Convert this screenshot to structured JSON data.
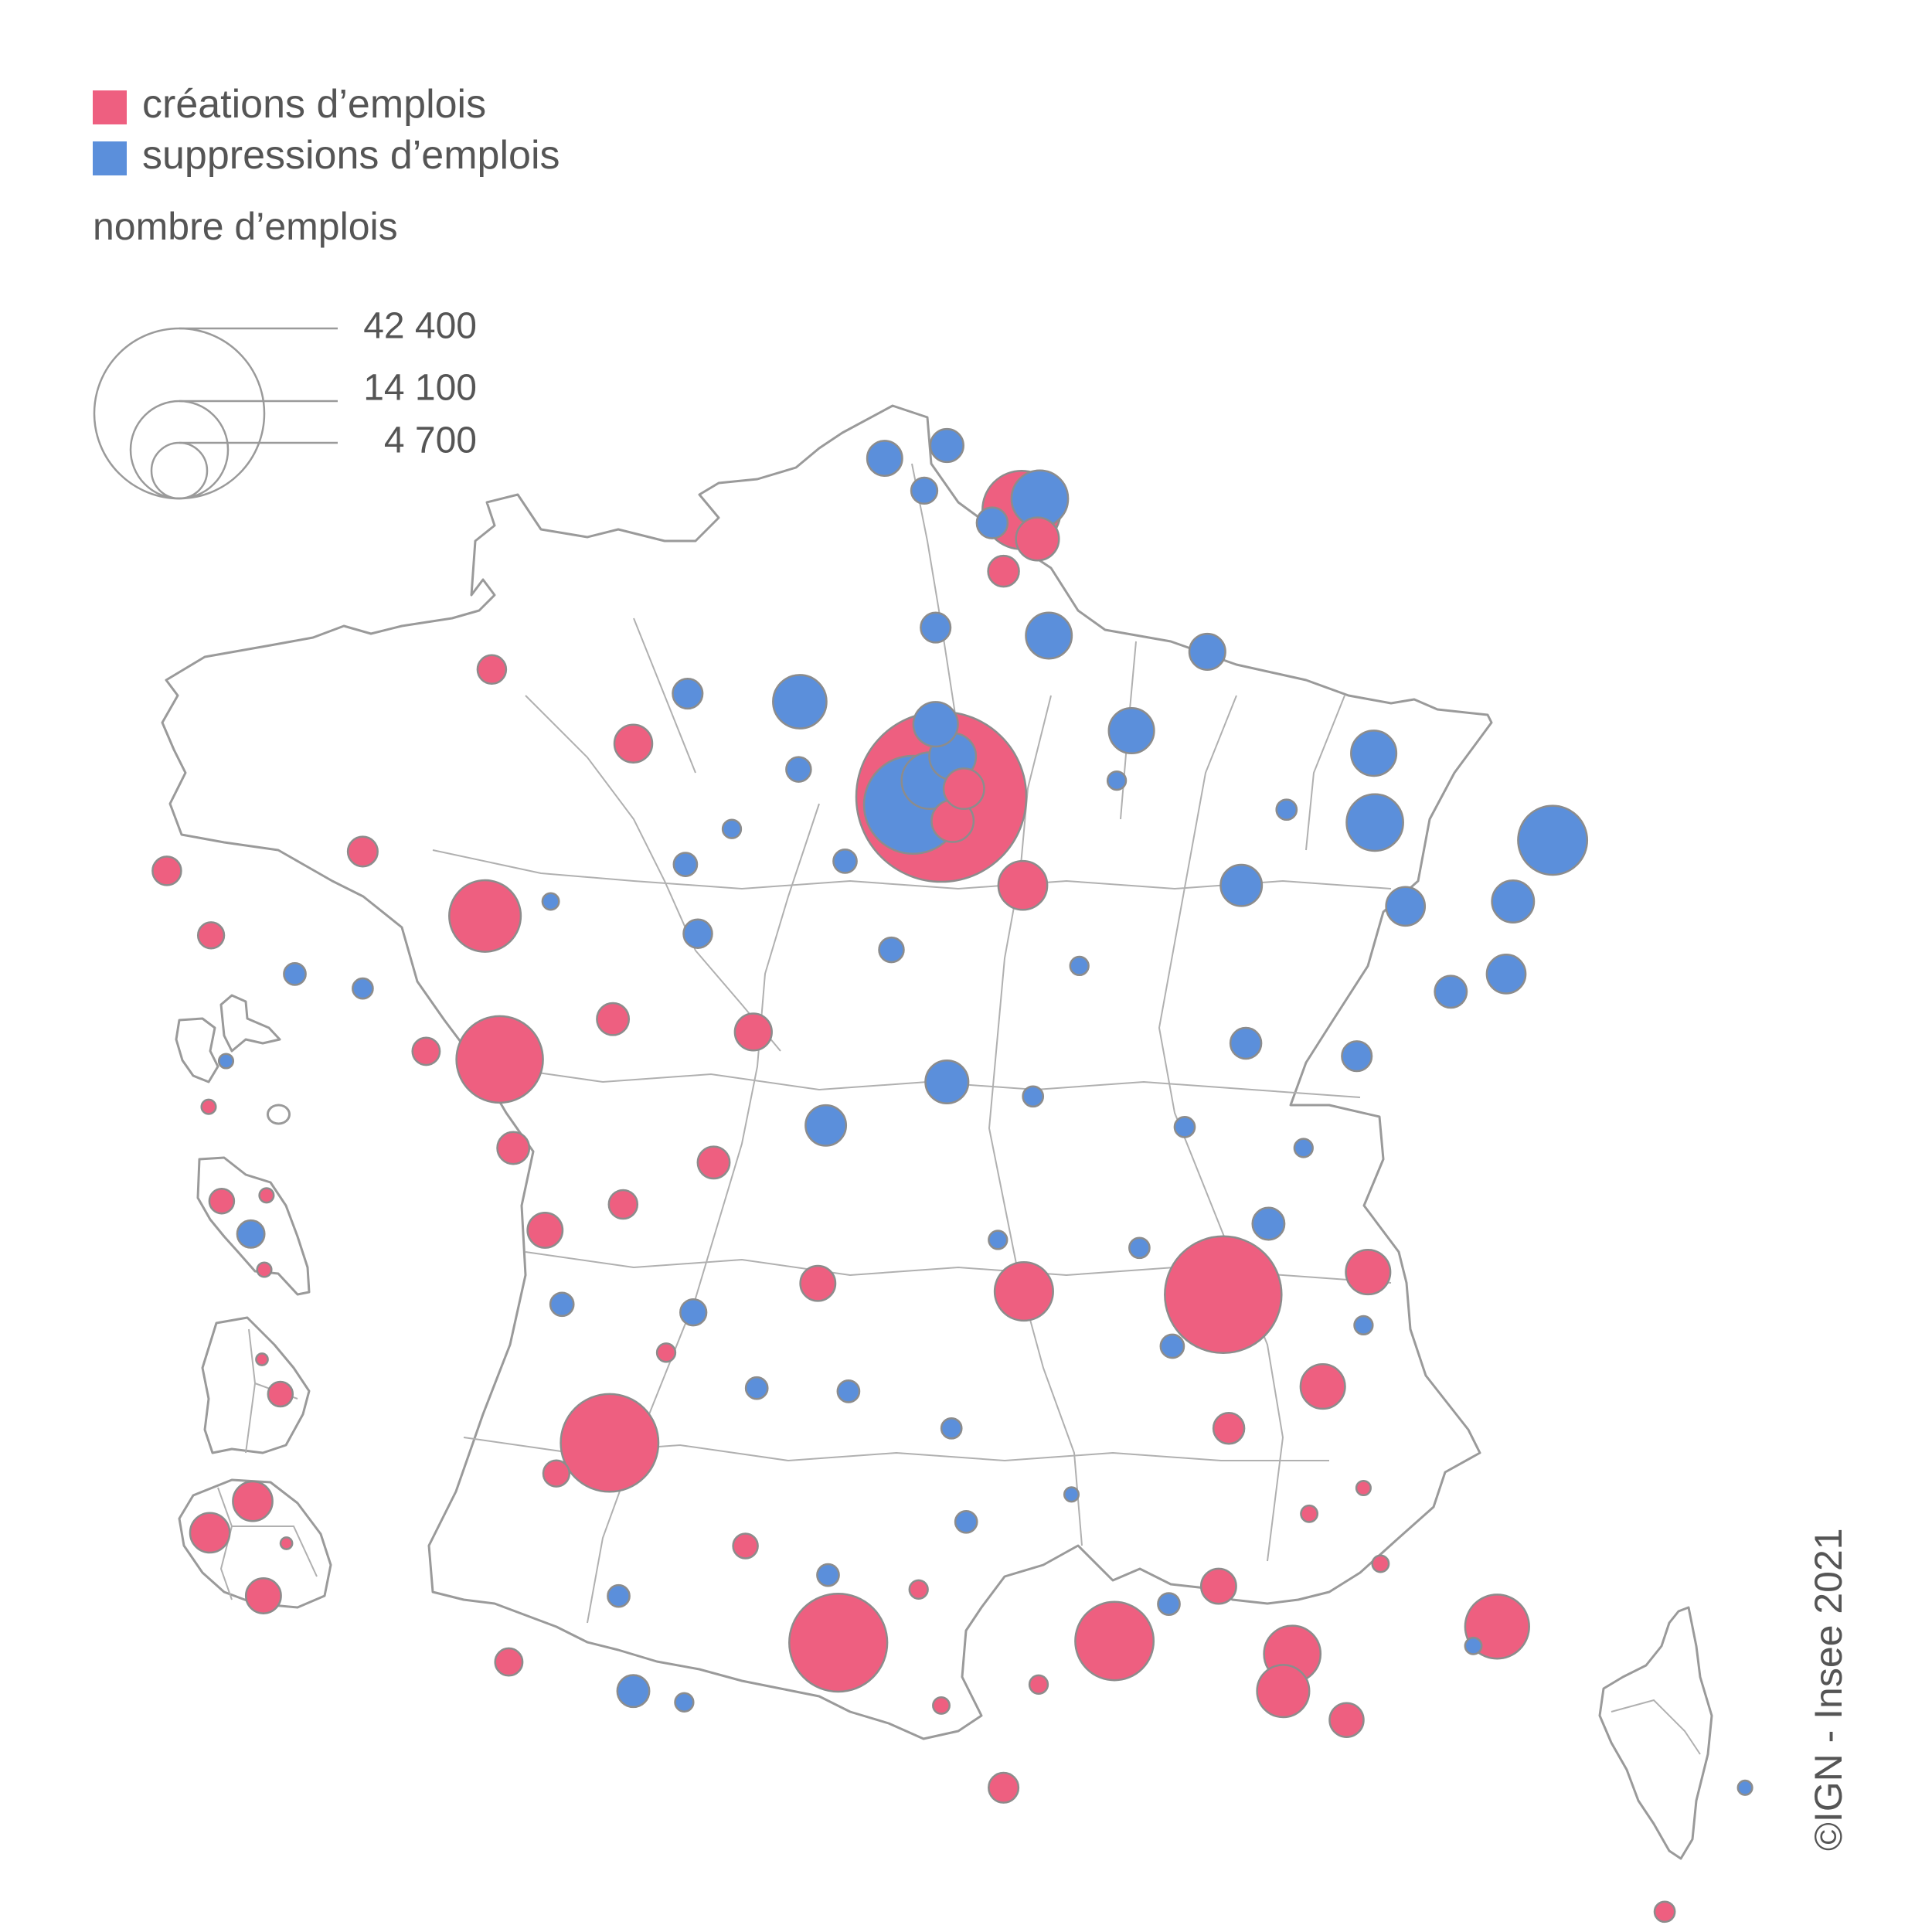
{
  "colors": {
    "creation": "#EE5F80",
    "suppression": "#5B8FDB",
    "border": "#9a9a9a"
  },
  "legend": {
    "creation_label": "créations d’emplois",
    "suppression_label": "suppressions d’emplois",
    "size_title": "nombre d’emplois",
    "sizes": [
      {
        "value": 42400,
        "label": "42 400"
      },
      {
        "value": 14100,
        "label": "14 100"
      },
      {
        "value": 4700,
        "label": "4 700"
      }
    ]
  },
  "credit": "©IGN - Insee 2021",
  "bubbles": [
    {
      "lon": 2.35,
      "lat": 48.85,
      "type": "creation",
      "value": 42400
    },
    {
      "lon": 2.1,
      "lat": 48.8,
      "type": "suppression",
      "value": 14100
    },
    {
      "lon": 2.25,
      "lat": 48.95,
      "type": "suppression",
      "value": 4700
    },
    {
      "lon": 2.45,
      "lat": 49.1,
      "type": "suppression",
      "value": 3200
    },
    {
      "lon": 2.55,
      "lat": 48.9,
      "type": "creation",
      "value": 2400
    },
    {
      "lon": 2.45,
      "lat": 48.7,
      "type": "creation",
      "value": 2600
    },
    {
      "lon": 2.3,
      "lat": 49.3,
      "type": "suppression",
      "value": 2900
    },
    {
      "lon": 3.06,
      "lat": 50.63,
      "type": "creation",
      "value": 9000
    },
    {
      "lon": 3.22,
      "lat": 50.7,
      "type": "suppression",
      "value": 4700
    },
    {
      "lon": 3.2,
      "lat": 50.45,
      "type": "creation",
      "value": 2700
    },
    {
      "lon": 2.9,
      "lat": 50.25,
      "type": "creation",
      "value": 1400
    },
    {
      "lon": 1.85,
      "lat": 50.95,
      "type": "suppression",
      "value": 1800
    },
    {
      "lon": 2.4,
      "lat": 51.03,
      "type": "suppression",
      "value": 1600
    },
    {
      "lon": 2.2,
      "lat": 50.75,
      "type": "suppression",
      "value": 1000
    },
    {
      "lon": 2.8,
      "lat": 50.55,
      "type": "suppression",
      "value": 1400
    },
    {
      "lon": 2.3,
      "lat": 49.9,
      "type": "suppression",
      "value": 1300
    },
    {
      "lon": 4.03,
      "lat": 49.26,
      "type": "suppression",
      "value": 3000
    },
    {
      "lon": 3.3,
      "lat": 49.85,
      "type": "suppression",
      "value": 3100
    },
    {
      "lon": 4.7,
      "lat": 49.75,
      "type": "suppression",
      "value": 1900
    },
    {
      "lon": 1.1,
      "lat": 49.44,
      "type": "suppression",
      "value": 4200
    },
    {
      "lon": 0.11,
      "lat": 49.49,
      "type": "suppression",
      "value": 1300
    },
    {
      "lon": -0.37,
      "lat": 49.18,
      "type": "creation",
      "value": 2100
    },
    {
      "lon": -1.62,
      "lat": 49.64,
      "type": "creation",
      "value": 1200
    },
    {
      "lon": 0.09,
      "lat": 48.43,
      "type": "suppression",
      "value": 800
    },
    {
      "lon": 1.09,
      "lat": 49.02,
      "type": "suppression",
      "value": 900
    },
    {
      "lon": 6.18,
      "lat": 48.69,
      "type": "suppression",
      "value": 4700
    },
    {
      "lon": 6.17,
      "lat": 49.12,
      "type": "suppression",
      "value": 3000
    },
    {
      "lon": 7.75,
      "lat": 48.58,
      "type": "suppression",
      "value": 7000
    },
    {
      "lon": 7.34,
      "lat": 47.75,
      "type": "suppression",
      "value": 2200
    },
    {
      "lon": 7.4,
      "lat": 48.2,
      "type": "suppression",
      "value": 2600
    },
    {
      "lon": 6.45,
      "lat": 48.17,
      "type": "suppression",
      "value": 2200
    },
    {
      "lon": 5.0,
      "lat": 48.3,
      "type": "suppression",
      "value": 2500
    },
    {
      "lon": 3.07,
      "lat": 48.3,
      "type": "creation",
      "value": 3500
    },
    {
      "lon": 5.04,
      "lat": 47.32,
      "type": "suppression",
      "value": 1400
    },
    {
      "lon": 6.02,
      "lat": 47.24,
      "type": "suppression",
      "value": 1300
    },
    {
      "lon": 6.85,
      "lat": 47.64,
      "type": "suppression",
      "value": 1500
    },
    {
      "lon": 1.91,
      "lat": 47.9,
      "type": "suppression",
      "value": 900
    },
    {
      "lon": 0.69,
      "lat": 47.39,
      "type": "creation",
      "value": 2000
    },
    {
      "lon": 2.4,
      "lat": 47.08,
      "type": "suppression",
      "value": 2700
    },
    {
      "lon": 1.33,
      "lat": 46.81,
      "type": "suppression",
      "value": 2400
    },
    {
      "lon": 0.2,
      "lat": 48.0,
      "type": "suppression",
      "value": 1200
    },
    {
      "lon": -1.68,
      "lat": 48.11,
      "type": "creation",
      "value": 7500
    },
    {
      "lon": -1.55,
      "lat": 47.22,
      "type": "creation",
      "value": 11000
    },
    {
      "lon": -0.55,
      "lat": 47.47,
      "type": "creation",
      "value": 1500
    },
    {
      "lon": -2.76,
      "lat": 48.51,
      "type": "creation",
      "value": 1300
    },
    {
      "lon": -4.49,
      "lat": 48.39,
      "type": "creation",
      "value": 1200
    },
    {
      "lon": -4.1,
      "lat": 47.99,
      "type": "creation",
      "value": 1000
    },
    {
      "lon": -2.76,
      "lat": 47.66,
      "type": "suppression",
      "value": 600
    },
    {
      "lon": -3.36,
      "lat": 47.75,
      "type": "suppression",
      "value": 700
    },
    {
      "lon": -2.2,
      "lat": 47.27,
      "type": "creation",
      "value": 1100
    },
    {
      "lon": -1.43,
      "lat": 46.67,
      "type": "creation",
      "value": 1500
    },
    {
      "lon": -1.15,
      "lat": 46.16,
      "type": "creation",
      "value": 1800
    },
    {
      "lon": 0.34,
      "lat": 46.58,
      "type": "creation",
      "value": 1500
    },
    {
      "lon": -0.46,
      "lat": 46.32,
      "type": "creation",
      "value": 1200
    },
    {
      "lon": 0.16,
      "lat": 45.65,
      "type": "suppression",
      "value": 1000
    },
    {
      "lon": -0.58,
      "lat": 44.84,
      "type": "creation",
      "value": 14000
    },
    {
      "lon": 0.62,
      "lat": 44.2,
      "type": "creation",
      "value": 900
    },
    {
      "lon": -1.05,
      "lat": 44.65,
      "type": "creation",
      "value": 1000
    },
    {
      "lon": -0.5,
      "lat": 43.89,
      "type": "suppression",
      "value": 700
    },
    {
      "lon": -0.37,
      "lat": 43.3,
      "type": "suppression",
      "value": 1500
    },
    {
      "lon": -1.47,
      "lat": 43.48,
      "type": "creation",
      "value": 1100
    },
    {
      "lon": 1.44,
      "lat": 43.6,
      "type": "creation",
      "value": 14100
    },
    {
      "lon": 1.26,
      "lat": 45.83,
      "type": "creation",
      "value": 1800
    },
    {
      "lon": 0.72,
      "lat": 45.18,
      "type": "suppression",
      "value": 700
    },
    {
      "lon": 1.53,
      "lat": 45.16,
      "type": "suppression",
      "value": 700
    },
    {
      "lon": 2.57,
      "lat": 44.35,
      "type": "suppression",
      "value": 700
    },
    {
      "lon": 3.08,
      "lat": 45.78,
      "type": "creation",
      "value": 5000
    },
    {
      "lon": 2.44,
      "lat": 44.93,
      "type": "suppression",
      "value": 600
    },
    {
      "lon": 4.84,
      "lat": 45.76,
      "type": "creation",
      "value": 20000
    },
    {
      "lon": 5.72,
      "lat": 45.19,
      "type": "creation",
      "value": 2900
    },
    {
      "lon": 6.12,
      "lat": 45.9,
      "type": "creation",
      "value": 2900
    },
    {
      "lon": 5.24,
      "lat": 46.2,
      "type": "suppression",
      "value": 1500
    },
    {
      "lon": 4.39,
      "lat": 45.44,
      "type": "suppression",
      "value": 800
    },
    {
      "lon": 4.89,
      "lat": 44.93,
      "type": "creation",
      "value": 1400
    },
    {
      "lon": 3.88,
      "lat": 43.61,
      "type": "creation",
      "value": 9000
    },
    {
      "lon": 4.36,
      "lat": 43.84,
      "type": "suppression",
      "value": 700
    },
    {
      "lon": 4.8,
      "lat": 43.95,
      "type": "creation",
      "value": 1800
    },
    {
      "lon": 5.45,
      "lat": 43.53,
      "type": "creation",
      "value": 4700
    },
    {
      "lon": 5.37,
      "lat": 43.3,
      "type": "creation",
      "value": 4000
    },
    {
      "lon": 5.93,
      "lat": 43.12,
      "type": "creation",
      "value": 1700
    },
    {
      "lon": 7.26,
      "lat": 43.7,
      "type": "creation",
      "value": 6000
    },
    {
      "lon": 7.05,
      "lat": 43.58,
      "type": "suppression",
      "value": 400
    },
    {
      "lon": 2.9,
      "lat": 42.7,
      "type": "creation",
      "value": 1300
    },
    {
      "lon": 2.35,
      "lat": 43.21,
      "type": "creation",
      "value": 400
    },
    {
      "lon": 3.21,
      "lat": 43.34,
      "type": "creation",
      "value": 500
    },
    {
      "lon": 2.15,
      "lat": 43.93,
      "type": "creation",
      "value": 500
    },
    {
      "lon": 1.35,
      "lat": 44.02,
      "type": "suppression",
      "value": 700
    },
    {
      "lon": 0.08,
      "lat": 43.23,
      "type": "suppression",
      "value": 500
    },
    {
      "lon": 3.5,
      "lat": 44.52,
      "type": "suppression",
      "value": 300
    },
    {
      "lon": 6.08,
      "lat": 45.57,
      "type": "suppression",
      "value": 500
    },
    {
      "lon": 6.23,
      "lat": 44.09,
      "type": "creation",
      "value": 400
    },
    {
      "lon": 6.08,
      "lat": 44.56,
      "type": "creation",
      "value": 300
    },
    {
      "lon": 8.74,
      "lat": 41.93,
      "type": "creation",
      "value": 600
    },
    {
      "lon": 9.45,
      "lat": 42.7,
      "type": "suppression",
      "value": 300
    },
    {
      "lon": 5.6,
      "lat": 44.4,
      "type": "creation",
      "value": 400
    },
    {
      "lon": 4.1,
      "lat": 46.05,
      "type": "suppression",
      "value": 600
    },
    {
      "lon": 3.57,
      "lat": 47.8,
      "type": "suppression",
      "value": 500
    },
    {
      "lon": 3.16,
      "lat": 46.99,
      "type": "suppression",
      "value": 600
    },
    {
      "lon": 2.85,
      "lat": 46.1,
      "type": "suppression",
      "value": 500
    },
    {
      "lon": 4.5,
      "lat": 46.8,
      "type": "suppression",
      "value": 600
    },
    {
      "lon": 5.55,
      "lat": 46.67,
      "type": "suppression",
      "value": 500
    },
    {
      "lon": 0.5,
      "lat": 48.65,
      "type": "suppression",
      "value": 500
    },
    {
      "lon": -1.1,
      "lat": 48.2,
      "type": "suppression",
      "value": 400
    },
    {
      "lon": 1.5,
      "lat": 48.45,
      "type": "suppression",
      "value": 800
    },
    {
      "lon": 3.9,
      "lat": 48.95,
      "type": "suppression",
      "value": 500
    },
    {
      "lon": 5.4,
      "lat": 48.77,
      "type": "suppression",
      "value": 600
    },
    {
      "lon": -0.08,
      "lat": 45.4,
      "type": "creation",
      "value": 500
    },
    {
      "lon": -1.0,
      "lat": 45.7,
      "type": "suppression",
      "value": 800
    }
  ],
  "overseas": {
    "guadeloupe": [
      {
        "fx": 0.45,
        "fy": 0.55,
        "type": "suppression",
        "value": 300
      },
      {
        "fx": 0.3,
        "fy": 0.92,
        "type": "creation",
        "value": 300
      }
    ],
    "martinique": [
      {
        "fx": 0.22,
        "fy": 0.32,
        "type": "creation",
        "value": 900
      },
      {
        "fx": 0.48,
        "fy": 0.55,
        "type": "suppression",
        "value": 1100
      },
      {
        "fx": 0.62,
        "fy": 0.28,
        "type": "creation",
        "value": 300
      },
      {
        "fx": 0.6,
        "fy": 0.8,
        "type": "creation",
        "value": 300
      }
    ],
    "guyane": [
      {
        "fx": 0.72,
        "fy": 0.55,
        "type": "creation",
        "value": 900
      },
      {
        "fx": 0.55,
        "fy": 0.3,
        "type": "creation",
        "value": 200
      }
    ],
    "reunion": [
      {
        "fx": 0.48,
        "fy": 0.18,
        "type": "creation",
        "value": 2300
      },
      {
        "fx": 0.2,
        "fy": 0.42,
        "type": "creation",
        "value": 2300
      },
      {
        "fx": 0.55,
        "fy": 0.9,
        "type": "creation",
        "value": 1800
      },
      {
        "fx": 0.7,
        "fy": 0.5,
        "type": "creation",
        "value": 200
      }
    ]
  }
}
